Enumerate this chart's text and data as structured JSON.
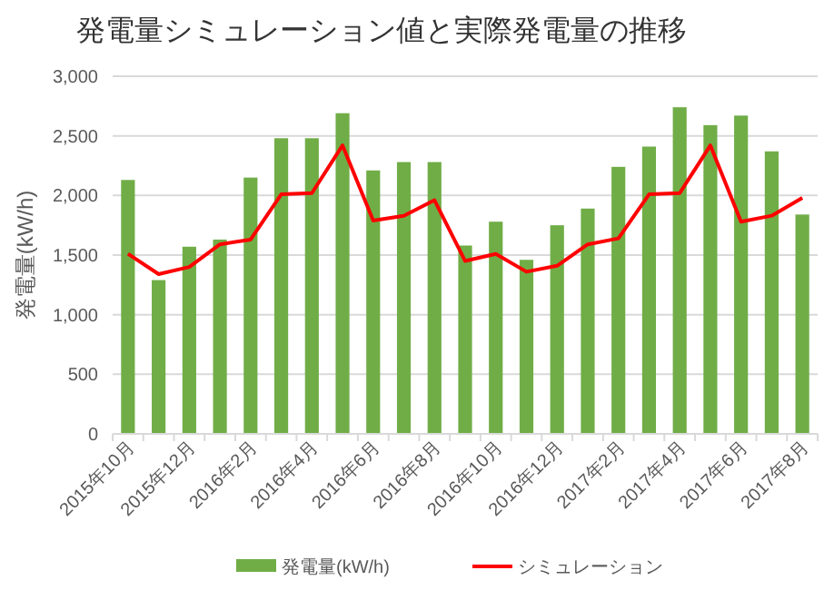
{
  "chart_data": {
    "type": "bar",
    "title": "発電量シミュレーション値と実際発電量の推移",
    "ylabel": "発電量(kW/h)",
    "categories": [
      "2015年10月",
      null,
      "2015年12月",
      null,
      "2016年2月",
      null,
      "2016年4月",
      null,
      "2016年6月",
      null,
      "2016年8月",
      null,
      "2016年10月",
      null,
      "2016年12月",
      null,
      "2017年2月",
      null,
      "2017年4月",
      null,
      "2017年6月",
      null,
      "2017年8月"
    ],
    "series": [
      {
        "name": "発電量(kW/h)",
        "color": "#70ad47",
        "values": [
          2130,
          1290,
          1570,
          1630,
          2150,
          2480,
          2480,
          2690,
          2210,
          2280,
          2280,
          1580,
          1780,
          1460,
          1750,
          1890,
          2240,
          2410,
          2740,
          2590,
          2670,
          2370,
          1840
        ]
      },
      {
        "name": "シミュレーション",
        "type": "line",
        "color": "#ff0000",
        "values": [
          1510,
          1340,
          1400,
          1590,
          1630,
          2010,
          2020,
          2420,
          1790,
          1830,
          1960,
          1450,
          1510,
          1360,
          1410,
          1590,
          1640,
          2010,
          2020,
          2420,
          1780,
          1830,
          1980
        ]
      }
    ],
    "ylim": [
      0,
      3000
    ],
    "yticks": [
      {
        "value": 0,
        "label": "0"
      },
      {
        "value": 500,
        "label": "500"
      },
      {
        "value": 1000,
        "label": "1,000"
      },
      {
        "value": 1500,
        "label": "1,500"
      },
      {
        "value": 2000,
        "label": "2,000"
      },
      {
        "value": 2500,
        "label": "2,500"
      },
      {
        "value": 3000,
        "label": "3,000"
      }
    ],
    "grid": "y",
    "legend": "bottom",
    "marker": "none",
    "line_style": "solid"
  }
}
